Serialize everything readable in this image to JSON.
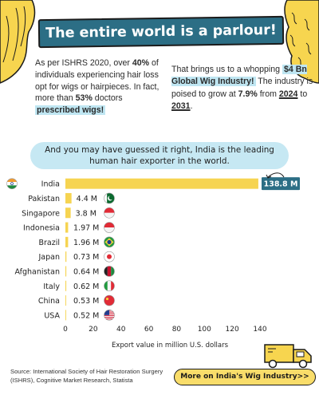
{
  "header": {
    "title": "The entire world is a parlour!"
  },
  "intro_left": {
    "p1": "As per ISHRS 2020, over ",
    "p1_bold": "40%",
    "p2": " of individuals experiencing hair loss opt for wigs or hairpieces. In fact, more than ",
    "p2_bold": "53%",
    "p3": " doctors ",
    "p3_highlight": "prescribed wigs!"
  },
  "intro_right": {
    "p1": "That brings us to a whopping ",
    "p1_highlight": "$4 Bn Global Wig Industry!",
    "p2": " The industry is poised to grow at ",
    "p2_bold": "7.9%",
    "p3": " from ",
    "p3_year1": "2024",
    "p4": " to ",
    "p4_year2": "2031",
    "p5": "."
  },
  "callout": {
    "line1": "And you may have guessed it right, India is the leading",
    "line2": "human hair exporter in the world."
  },
  "chart_data": {
    "type": "bar",
    "orientation": "horizontal",
    "categories": [
      "India",
      "Pakistan",
      "Singapore",
      "Indonesia",
      "Brazil",
      "Japan",
      "Afghanistan",
      "Italy",
      "China",
      "USA"
    ],
    "values": [
      138.8,
      4.4,
      3.8,
      1.97,
      1.96,
      0.73,
      0.64,
      0.62,
      0.53,
      0.52
    ],
    "value_labels": [
      "138.8 M",
      "4.4 M",
      "3.8 M",
      "1.97 M",
      "1.96 M",
      "0.73 M",
      "0.64 M",
      "0.62 M",
      "0.53 M",
      "0.52 M"
    ],
    "xlabel": "Export value in million U.S. dollars",
    "xticks": [
      0,
      20,
      40,
      60,
      80,
      100,
      120,
      140
    ],
    "xlim": [
      0,
      140
    ],
    "bar_color": "#f6d451",
    "highlight_color": "#2c6e85",
    "flag_icons": [
      "india-flag-icon",
      "pakistan-flag-icon",
      "singapore-flag-icon",
      "indonesia-flag-icon",
      "brazil-flag-icon",
      "japan-flag-icon",
      "afghanistan-flag-icon",
      "italy-flag-icon",
      "china-flag-icon",
      "usa-flag-icon"
    ]
  },
  "footer": {
    "source": "Source: International Society of Hair Restoration Surgery (ISHRS), Cognitive Market Research, Statista",
    "cta_label": "More on India's Wig Industry>>"
  }
}
